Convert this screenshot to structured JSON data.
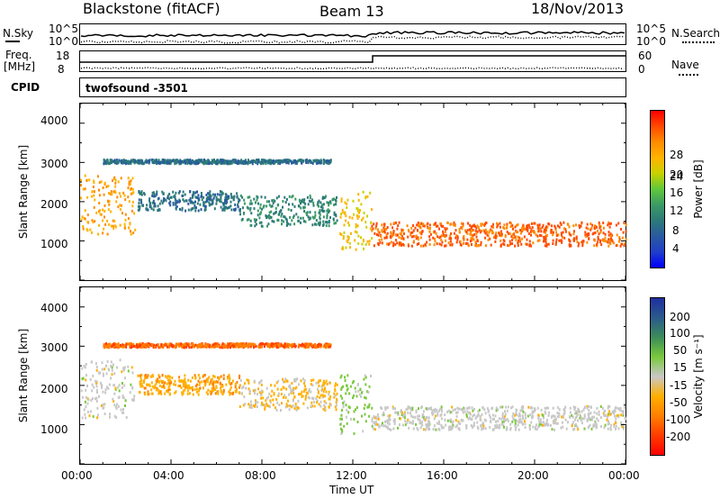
{
  "header": {
    "station": "Blackstone (fitACF)",
    "beam": "Beam 13",
    "date": "18/Nov/2013"
  },
  "top_panels": {
    "nsky_label": "N.Sky",
    "nsky_ticks": [
      "10^5",
      "10^0"
    ],
    "nsearch_label": "N.Search",
    "nsearch_ticks": [
      "10^5",
      "10^0"
    ],
    "freq_label": "Freq.",
    "freq_unit": "[MHz]",
    "freq_ticks": [
      "18",
      "8"
    ],
    "nave_label": "Nave",
    "nave_ticks": [
      "60",
      "0"
    ],
    "cpid_label": "CPID",
    "cpid_value": "twofsound -3501"
  },
  "axes": {
    "ylabel": "Slant Range [km]",
    "yticks": [
      "4000",
      "3000",
      "2000",
      "1000"
    ],
    "xlabel": "Time UT",
    "xticks": [
      "00:00",
      "04:00",
      "08:00",
      "12:00",
      "16:00",
      "20:00",
      "00:00"
    ]
  },
  "colorbars": {
    "power": {
      "label": "Power [dB]",
      "ticks": [
        "28",
        "24",
        "20",
        "16",
        "12",
        "8",
        "4"
      ],
      "colors": [
        "#ff0000",
        "#ff4a00",
        "#ff8c00",
        "#ffb300",
        "#c8d200",
        "#5fc83c",
        "#3c9a64",
        "#2c7a78",
        "#2a5aa0",
        "#1f3fc8",
        "#0000ff"
      ]
    },
    "velocity": {
      "label": "Velocity [m s⁻¹]",
      "ticks": [
        "200",
        "100",
        "50",
        "15",
        "-15",
        "-50",
        "-100",
        "-200"
      ],
      "colors": [
        "#1f2fa0",
        "#2a5a8c",
        "#3c8c5a",
        "#7ac83c",
        "#c8c8c8",
        "#ffb000",
        "#ff8000",
        "#ff3c00",
        "#ff0000"
      ]
    }
  },
  "chart_data": [
    {
      "type": "heatmap",
      "title": "Power",
      "xlabel": "Time UT",
      "ylabel": "Slant Range [km]",
      "xlim": [
        "00:00",
        "24:00"
      ],
      "ylim": [
        0,
        4500
      ],
      "clabel": "Power [dB]",
      "clim": [
        0,
        30
      ],
      "echo_bands": [
        {
          "t0": 0.0,
          "t1": 2.4,
          "r0": 1200,
          "r1": 2700,
          "value": 22
        },
        {
          "t0": 2.5,
          "t1": 7.0,
          "r0": 1800,
          "r1": 2300,
          "value": 8
        },
        {
          "t0": 7.0,
          "t1": 11.3,
          "r0": 1400,
          "r1": 2200,
          "value": 10
        },
        {
          "t0": 11.4,
          "t1": 12.8,
          "r0": 800,
          "r1": 2300,
          "value": 20
        },
        {
          "t0": 12.8,
          "t1": 24.0,
          "r0": 900,
          "r1": 1500,
          "value": 26
        },
        {
          "t0": 1.0,
          "t1": 11.0,
          "r0": 3000,
          "r1": 3100,
          "value": 8
        }
      ]
    },
    {
      "type": "heatmap",
      "title": "Velocity",
      "xlabel": "Time UT",
      "ylabel": "Slant Range [km]",
      "xlim": [
        "00:00",
        "24:00"
      ],
      "ylim": [
        0,
        4500
      ],
      "clabel": "Velocity [m s⁻¹]",
      "clim": [
        -200,
        200
      ],
      "echo_bands": [
        {
          "t0": 0.0,
          "t1": 2.4,
          "r0": 1200,
          "r1": 2700,
          "value": 0
        },
        {
          "t0": 2.5,
          "t1": 7.0,
          "r0": 1800,
          "r1": 2300,
          "value": -60
        },
        {
          "t0": 7.0,
          "t1": 11.3,
          "r0": 1400,
          "r1": 2200,
          "value": -30
        },
        {
          "t0": 11.4,
          "t1": 12.8,
          "r0": 800,
          "r1": 2300,
          "value": 40
        },
        {
          "t0": 12.8,
          "t1": 24.0,
          "r0": 900,
          "r1": 1500,
          "value": 0
        },
        {
          "t0": 1.0,
          "t1": 11.0,
          "r0": 3000,
          "r1": 3100,
          "value": -120
        }
      ]
    }
  ]
}
